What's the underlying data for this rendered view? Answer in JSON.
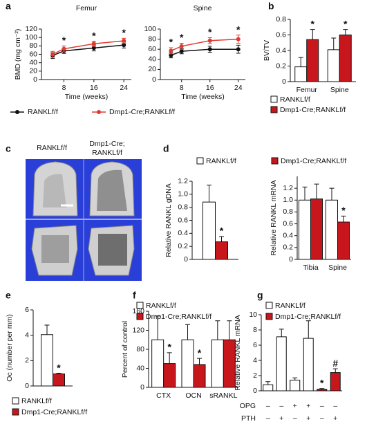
{
  "chart_data": [
    {
      "type": "line",
      "panel": "a",
      "title": "Femur",
      "y_label": "BMD (mg cm⁻²)",
      "x_label": "Time (weeks)",
      "x": [
        5,
        8,
        16,
        24
      ],
      "xlim": [
        2,
        26
      ],
      "xticks": [
        8,
        16,
        24
      ],
      "ylim": [
        0,
        120
      ],
      "yticks": [
        0,
        20,
        40,
        60,
        80,
        100,
        120
      ],
      "series": [
        {
          "name": "RANKLf/f",
          "color": "#111111",
          "values": [
            57,
            68,
            75,
            82
          ],
          "errors": [
            7,
            6,
            7,
            7
          ]
        },
        {
          "name": "Dmp1-Cre;RANKLf/f",
          "color": "#e03a30",
          "values": [
            60,
            73,
            85,
            92
          ],
          "errors": [
            7,
            7,
            6,
            6
          ],
          "marks": [
            null,
            "*",
            "*",
            "*"
          ]
        }
      ]
    },
    {
      "type": "line",
      "title": "Spine",
      "x_label": "Time (weeks)",
      "x": [
        5,
        8,
        16,
        24
      ],
      "xlim": [
        2,
        26
      ],
      "xticks": [
        8,
        16,
        24
      ],
      "ylim": [
        0,
        100
      ],
      "yticks": [
        0,
        20,
        40,
        60,
        80,
        100
      ],
      "series": [
        {
          "color": "#111111",
          "values": [
            48,
            56,
            60,
            60
          ],
          "errors": [
            5,
            5,
            6,
            8
          ]
        },
        {
          "color": "#e03a30",
          "values": [
            57,
            66,
            77,
            80
          ],
          "errors": [
            6,
            6,
            6,
            8
          ],
          "marks": [
            "*",
            "*",
            "*",
            "*"
          ]
        }
      ]
    },
    {
      "type": "bar",
      "panel": "b",
      "y_label": "BV/TV",
      "categories": [
        "Femur",
        "Spine"
      ],
      "ylim": [
        0,
        0.8
      ],
      "yticks": [
        0,
        0.2,
        0.4,
        0.6,
        0.8
      ],
      "series": [
        {
          "name": "RANKLf/f",
          "color": "#ffffff",
          "values": [
            0.19,
            0.41
          ],
          "errors": [
            0.12,
            0.15
          ]
        },
        {
          "name": "Dmp1-Cre;RANKLf/f",
          "color": "#c8161d",
          "values": [
            0.54,
            0.6
          ],
          "errors": [
            0.13,
            0.07
          ],
          "marks": [
            "*",
            "*"
          ]
        }
      ]
    },
    {
      "type": "bar",
      "panel": "d",
      "y_label": "Relative RANKL gDNA",
      "categories": [
        null
      ],
      "ylim": [
        0,
        1.2
      ],
      "yticks": [
        0,
        0.2,
        0.4,
        0.6,
        0.8,
        {
          "value": 1,
          "label": "1.0"
        },
        1.2
      ],
      "series": [
        {
          "name": "RANKLf/f",
          "color": "#ffffff",
          "values": [
            0.88
          ],
          "errors": [
            0.26
          ]
        },
        {
          "name": "Dmp1-Cre;RANKLf/f",
          "color": "#c8161d",
          "values": [
            0.27
          ],
          "errors": [
            0.08
          ],
          "marks": [
            "*"
          ]
        }
      ]
    },
    {
      "type": "bar",
      "y_label": "Relative RANKL mRNA",
      "categories": [
        "Tibia",
        "Spine"
      ],
      "ylim": [
        0,
        1.4
      ],
      "yticks": [
        0,
        0.2,
        0.4,
        0.6,
        0.8,
        {
          "value": 1,
          "label": "1.0"
        },
        1.2
      ],
      "series": [
        {
          "color": "#ffffff",
          "values": [
            1.0,
            1.0
          ],
          "errors": [
            0.22,
            0.2
          ]
        },
        {
          "color": "#c8161d",
          "values": [
            1.02,
            0.63
          ],
          "errors": [
            0.25,
            0.1
          ],
          "marks": [
            null,
            "*"
          ]
        }
      ]
    },
    {
      "type": "bar",
      "panel": "e",
      "y_label": "Oc (number per mm)",
      "categories": [
        null
      ],
      "ylim": [
        0,
        6
      ],
      "yticks": [
        0,
        2,
        4,
        6
      ],
      "series": [
        {
          "name": "RANKLf/f",
          "color": "#ffffff",
          "values": [
            4.05
          ],
          "errors": [
            0.75
          ]
        },
        {
          "name": "Dmp1-Cre;RANKLf/f",
          "color": "#c8161d",
          "values": [
            0.95
          ],
          "errors": [
            0.05
          ],
          "marks": [
            "*"
          ]
        }
      ]
    },
    {
      "type": "bar",
      "panel": "f",
      "y_label": "Percent of control",
      "categories": [
        "CTX",
        "OCN",
        "sRANKL"
      ],
      "ylim": [
        0,
        160
      ],
      "yticks": [
        0,
        40,
        80,
        120,
        160
      ],
      "series": [
        {
          "name": "RANKLf/f",
          "color": "#ffffff",
          "values": [
            100,
            100,
            100
          ],
          "errors": [
            50,
            32,
            40
          ]
        },
        {
          "name": "Dmp1-Cre;RANKLf/f",
          "color": "#c8161d",
          "values": [
            50,
            48,
            100
          ],
          "errors": [
            23,
            13,
            40
          ],
          "marks": [
            "*",
            "*",
            null
          ]
        }
      ]
    },
    {
      "type": "bar",
      "panel": "g",
      "y_label": "Relative RANKL mRNA",
      "categories": [
        null,
        null,
        null,
        null,
        null,
        null
      ],
      "ylim": [
        0,
        10
      ],
      "yticks": [
        0,
        2,
        4,
        6,
        8,
        10
      ],
      "series": [
        {
          "name": "RANKLf/f",
          "color": "#ffffff",
          "values": [
            0.8,
            7.1,
            1.4,
            6.9,
            null,
            null
          ],
          "errors": [
            0.4,
            1.0,
            0.3,
            2.3,
            null,
            null
          ]
        },
        {
          "name": "Dmp1-Cre;RANKLf/f",
          "color": "#c8161d",
          "values": [
            null,
            null,
            null,
            null,
            0.2,
            2.4
          ],
          "errors": [
            null,
            null,
            null,
            null,
            0.1,
            0.5
          ],
          "marks": [
            null,
            null,
            null,
            null,
            "*",
            "#"
          ]
        }
      ],
      "rows": [
        {
          "label": "OPG",
          "values": [
            "–",
            "–",
            "+",
            "+",
            "–",
            "–"
          ]
        },
        {
          "label": "PTH",
          "values": [
            "–",
            "+",
            "–",
            "+",
            "–",
            "+"
          ]
        }
      ]
    }
  ],
  "image_panel": {
    "panel": "c",
    "left_label": "RANKLf/f",
    "right_label": [
      "Dmp1-Cre;",
      "RANKLf/f"
    ]
  }
}
